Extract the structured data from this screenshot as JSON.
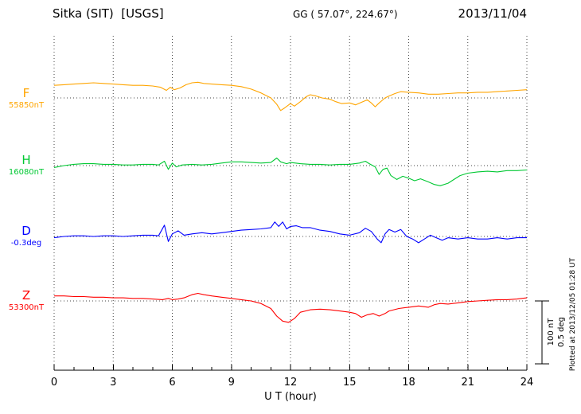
{
  "header": {
    "station": "Sitka (SIT)  [USGS]",
    "coordinates": "GG ( 57.07°, 224.67°)",
    "date": "2013/11/04"
  },
  "scale_bar": {
    "labels": [
      "100 nT",
      "0.5 deg"
    ]
  },
  "footer": {
    "plotted_at": "Plotted at 2013/12/05 01:28 UT"
  },
  "chart_data": {
    "type": "line",
    "title": "Sitka (SIT) [USGS] magnetogram 2013/11/04",
    "xlabel": "U T (hour)",
    "xlim": [
      0,
      24
    ],
    "x_ticks": [
      0,
      3,
      6,
      9,
      12,
      15,
      18,
      21,
      24
    ],
    "grid": "dotted vertical at 3-hour intervals, dotted horizontal baselines per channel",
    "scale": "100 nT and 0.5 deg per scale-bar length",
    "point_format": "[UT hour, offset from baseline in channel units]",
    "series": [
      {
        "name": "F",
        "baseline_label": "55850nT",
        "baseline_value": 55850,
        "units": "nT",
        "color": "#FFA500",
        "points": [
          [
            0,
            20
          ],
          [
            0.5,
            21
          ],
          [
            1,
            22
          ],
          [
            1.5,
            23
          ],
          [
            2,
            24
          ],
          [
            2.5,
            23
          ],
          [
            3,
            22
          ],
          [
            3.5,
            21
          ],
          [
            4,
            20
          ],
          [
            4.5,
            20
          ],
          [
            5,
            19
          ],
          [
            5.4,
            17
          ],
          [
            5.7,
            12
          ],
          [
            5.9,
            17
          ],
          [
            6.1,
            13
          ],
          [
            6.4,
            16
          ],
          [
            6.7,
            21
          ],
          [
            7,
            24
          ],
          [
            7.3,
            25
          ],
          [
            7.6,
            23
          ],
          [
            8,
            22
          ],
          [
            8.5,
            21
          ],
          [
            9,
            20
          ],
          [
            9.5,
            18
          ],
          [
            10,
            14
          ],
          [
            10.5,
            8
          ],
          [
            11,
            0
          ],
          [
            11.3,
            -10
          ],
          [
            11.5,
            -20
          ],
          [
            11.7,
            -16
          ],
          [
            12,
            -9
          ],
          [
            12.2,
            -13
          ],
          [
            12.5,
            -6
          ],
          [
            12.8,
            2
          ],
          [
            13,
            5
          ],
          [
            13.3,
            3
          ],
          [
            13.6,
            0
          ],
          [
            14,
            -2
          ],
          [
            14.3,
            -6
          ],
          [
            14.6,
            -9
          ],
          [
            15,
            -8
          ],
          [
            15.3,
            -11
          ],
          [
            15.6,
            -7
          ],
          [
            15.9,
            -3
          ],
          [
            16.1,
            -8
          ],
          [
            16.3,
            -14
          ],
          [
            16.5,
            -8
          ],
          [
            16.8,
            0
          ],
          [
            17,
            3
          ],
          [
            17.3,
            7
          ],
          [
            17.6,
            10
          ],
          [
            18,
            9
          ],
          [
            18.5,
            8
          ],
          [
            19,
            6
          ],
          [
            19.5,
            6
          ],
          [
            20,
            7
          ],
          [
            20.5,
            8
          ],
          [
            21,
            8
          ],
          [
            21.5,
            9
          ],
          [
            22,
            9
          ],
          [
            22.5,
            10
          ],
          [
            23,
            11
          ],
          [
            23.5,
            12
          ],
          [
            24,
            13
          ]
        ]
      },
      {
        "name": "H",
        "baseline_label": "16080nT",
        "baseline_value": 16080,
        "units": "nT",
        "color": "#00C832",
        "points": [
          [
            0,
            -3
          ],
          [
            0.5,
            0
          ],
          [
            1,
            2
          ],
          [
            1.5,
            3
          ],
          [
            2,
            3
          ],
          [
            2.5,
            2
          ],
          [
            3,
            2
          ],
          [
            3.5,
            1
          ],
          [
            4,
            1
          ],
          [
            4.5,
            2
          ],
          [
            5,
            2
          ],
          [
            5.3,
            1
          ],
          [
            5.6,
            7
          ],
          [
            5.8,
            -6
          ],
          [
            6,
            4
          ],
          [
            6.2,
            -2
          ],
          [
            6.5,
            1
          ],
          [
            7,
            2
          ],
          [
            7.5,
            1
          ],
          [
            8,
            2
          ],
          [
            8.5,
            4
          ],
          [
            9,
            6
          ],
          [
            9.5,
            6
          ],
          [
            10,
            5
          ],
          [
            10.5,
            4
          ],
          [
            11,
            5
          ],
          [
            11.3,
            12
          ],
          [
            11.5,
            6
          ],
          [
            11.8,
            3
          ],
          [
            12,
            5
          ],
          [
            12.5,
            3
          ],
          [
            13,
            2
          ],
          [
            13.5,
            2
          ],
          [
            14,
            1
          ],
          [
            14.5,
            2
          ],
          [
            15,
            2
          ],
          [
            15.5,
            4
          ],
          [
            15.8,
            7
          ],
          [
            16,
            3
          ],
          [
            16.3,
            -2
          ],
          [
            16.5,
            -14
          ],
          [
            16.7,
            -6
          ],
          [
            16.9,
            -4
          ],
          [
            17.1,
            -16
          ],
          [
            17.4,
            -22
          ],
          [
            17.7,
            -17
          ],
          [
            18,
            -20
          ],
          [
            18.3,
            -24
          ],
          [
            18.6,
            -21
          ],
          [
            19,
            -26
          ],
          [
            19.3,
            -30
          ],
          [
            19.6,
            -32
          ],
          [
            20,
            -28
          ],
          [
            20.3,
            -22
          ],
          [
            20.6,
            -16
          ],
          [
            21,
            -12
          ],
          [
            21.5,
            -10
          ],
          [
            22,
            -9
          ],
          [
            22.5,
            -10
          ],
          [
            23,
            -8
          ],
          [
            23.5,
            -8
          ],
          [
            24,
            -7
          ]
        ]
      },
      {
        "name": "D",
        "baseline_label": "-0.3deg",
        "baseline_value": -0.3,
        "units": "deg",
        "color": "#0000FF",
        "points": [
          [
            0,
            -0.01
          ],
          [
            0.5,
            0
          ],
          [
            1,
            0.005
          ],
          [
            1.5,
            0.005
          ],
          [
            2,
            0
          ],
          [
            2.5,
            0.005
          ],
          [
            3,
            0.005
          ],
          [
            3.5,
            0
          ],
          [
            4,
            0.005
          ],
          [
            4.5,
            0.01
          ],
          [
            5,
            0.01
          ],
          [
            5.3,
            0.005
          ],
          [
            5.6,
            0.09
          ],
          [
            5.8,
            -0.04
          ],
          [
            6,
            0.02
          ],
          [
            6.3,
            0.045
          ],
          [
            6.6,
            0.01
          ],
          [
            7,
            0.02
          ],
          [
            7.5,
            0.03
          ],
          [
            8,
            0.02
          ],
          [
            8.5,
            0.03
          ],
          [
            9,
            0.04
          ],
          [
            9.5,
            0.05
          ],
          [
            10,
            0.055
          ],
          [
            10.5,
            0.06
          ],
          [
            11,
            0.07
          ],
          [
            11.2,
            0.115
          ],
          [
            11.4,
            0.08
          ],
          [
            11.6,
            0.115
          ],
          [
            11.8,
            0.06
          ],
          [
            12,
            0.08
          ],
          [
            12.3,
            0.085
          ],
          [
            12.6,
            0.07
          ],
          [
            13,
            0.07
          ],
          [
            13.5,
            0.05
          ],
          [
            14,
            0.04
          ],
          [
            14.5,
            0.02
          ],
          [
            15,
            0.01
          ],
          [
            15.5,
            0.03
          ],
          [
            15.8,
            0.065
          ],
          [
            16.1,
            0.04
          ],
          [
            16.4,
            -0.02
          ],
          [
            16.6,
            -0.05
          ],
          [
            16.8,
            0.02
          ],
          [
            17,
            0.055
          ],
          [
            17.3,
            0.035
          ],
          [
            17.6,
            0.055
          ],
          [
            17.9,
            0
          ],
          [
            18.2,
            -0.02
          ],
          [
            18.5,
            -0.05
          ],
          [
            18.8,
            -0.02
          ],
          [
            19.1,
            0.01
          ],
          [
            19.4,
            -0.01
          ],
          [
            19.7,
            -0.03
          ],
          [
            20,
            -0.01
          ],
          [
            20.5,
            -0.02
          ],
          [
            21,
            -0.01
          ],
          [
            21.5,
            -0.02
          ],
          [
            22,
            -0.02
          ],
          [
            22.5,
            -0.01
          ],
          [
            23,
            -0.02
          ],
          [
            23.5,
            -0.01
          ],
          [
            24,
            -0.01
          ]
        ]
      },
      {
        "name": "Z",
        "baseline_label": "53300nT",
        "baseline_value": 53300,
        "units": "nT",
        "color": "#FF0000",
        "points": [
          [
            0,
            8
          ],
          [
            0.5,
            8
          ],
          [
            1,
            7
          ],
          [
            1.5,
            7
          ],
          [
            2,
            6
          ],
          [
            2.5,
            6
          ],
          [
            3,
            5
          ],
          [
            3.5,
            5
          ],
          [
            4,
            4
          ],
          [
            4.5,
            4
          ],
          [
            5,
            3
          ],
          [
            5.5,
            2
          ],
          [
            5.8,
            4
          ],
          [
            6,
            2
          ],
          [
            6.3,
            3
          ],
          [
            6.6,
            5
          ],
          [
            7,
            10
          ],
          [
            7.3,
            12
          ],
          [
            7.6,
            10
          ],
          [
            8,
            8
          ],
          [
            8.5,
            6
          ],
          [
            9,
            4
          ],
          [
            9.5,
            2
          ],
          [
            10,
            0
          ],
          [
            10.5,
            -4
          ],
          [
            11,
            -12
          ],
          [
            11.3,
            -24
          ],
          [
            11.6,
            -32
          ],
          [
            11.9,
            -34
          ],
          [
            12.2,
            -28
          ],
          [
            12.5,
            -18
          ],
          [
            13,
            -14
          ],
          [
            13.5,
            -13
          ],
          [
            14,
            -14
          ],
          [
            14.5,
            -16
          ],
          [
            15,
            -18
          ],
          [
            15.3,
            -20
          ],
          [
            15.6,
            -26
          ],
          [
            15.9,
            -22
          ],
          [
            16.2,
            -20
          ],
          [
            16.5,
            -24
          ],
          [
            16.8,
            -20
          ],
          [
            17,
            -16
          ],
          [
            17.5,
            -12
          ],
          [
            18,
            -10
          ],
          [
            18.5,
            -8
          ],
          [
            19,
            -10
          ],
          [
            19.3,
            -6
          ],
          [
            19.6,
            -4
          ],
          [
            20,
            -5
          ],
          [
            20.5,
            -3
          ],
          [
            21,
            -1
          ],
          [
            21.5,
            0
          ],
          [
            22,
            1
          ],
          [
            22.5,
            2
          ],
          [
            23,
            2
          ],
          [
            23.5,
            3
          ],
          [
            24,
            5
          ]
        ]
      }
    ]
  }
}
